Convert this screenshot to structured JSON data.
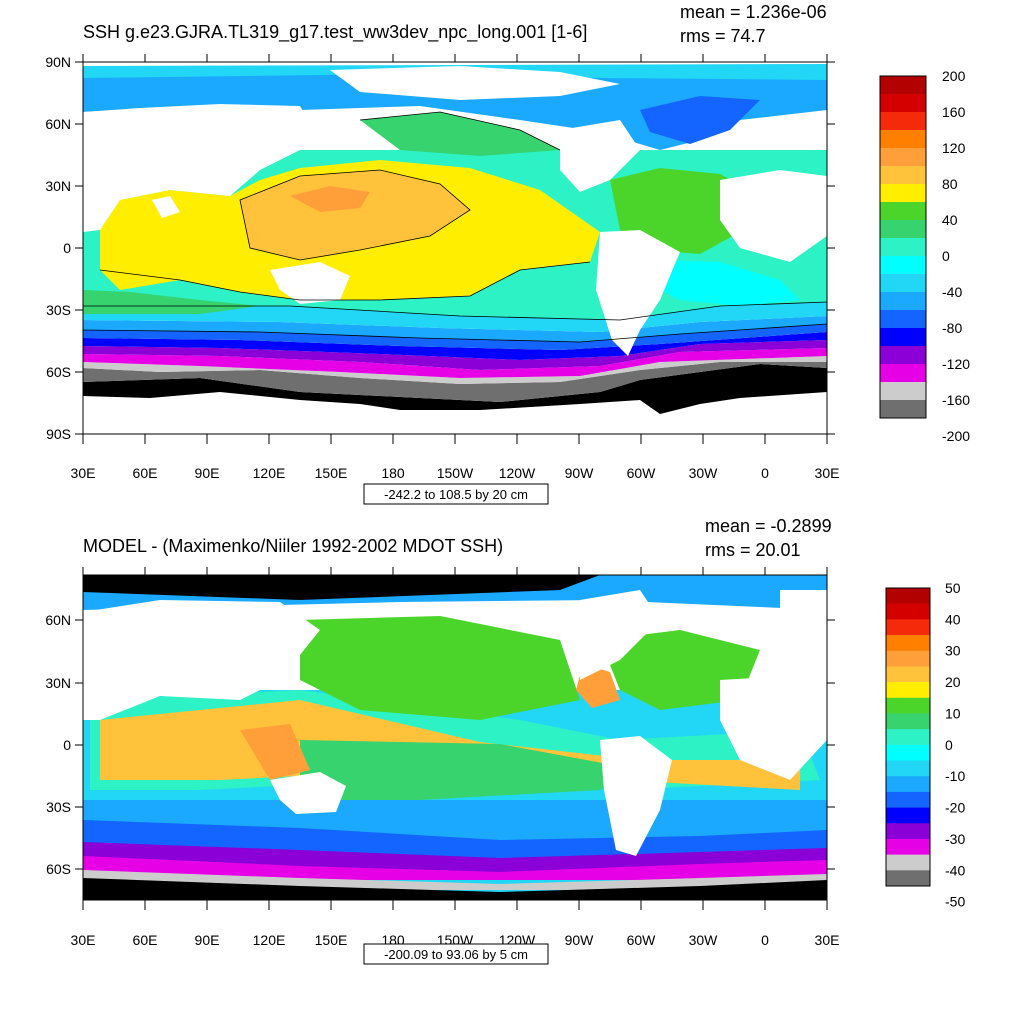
{
  "panels": [
    {
      "title": "SSH g.e23.GJRA.TL319_g17.test_ww3dev_npc_long.001 [1-6]",
      "stats": {
        "mean": "mean = 1.236e-06",
        "rms": "rms = 74.7"
      },
      "lat_ticks": [
        "90N",
        "60N",
        "30N",
        "0",
        "30S",
        "60S",
        "90S"
      ],
      "lon_ticks": [
        "30E",
        "60E",
        "90E",
        "120E",
        "150E",
        "180",
        "150W",
        "120W",
        "90W",
        "60W",
        "30W",
        "0",
        "30E"
      ],
      "range_label": "-242.2 to 108.5 by 20 cm",
      "colorbar": {
        "labels": [
          "200",
          "160",
          "120",
          "80",
          "40",
          "0",
          "-40",
          "-80",
          "-120",
          "-160",
          "-200"
        ],
        "colors": [
          "#b30000",
          "#d40000",
          "#f52a0a",
          "#ff7f00",
          "#ff9f3a",
          "#ffc23a",
          "#ffee00",
          "#4bd52a",
          "#36d36f",
          "#2cf2c6",
          "#00ffff",
          "#22d7f5",
          "#1aa9ff",
          "#1464ff",
          "#0000ff",
          "#8a00d6",
          "#e600e6",
          "#cccccc",
          "#6f6f6f"
        ]
      }
    },
    {
      "title": "MODEL - (Maximenko/Niiler 1992-2002 MDOT SSH)",
      "stats": {
        "mean": "mean = -0.2899",
        "rms": "rms = 20.01"
      },
      "lat_ticks": [
        "60N",
        "30N",
        "0",
        "30S",
        "60S"
      ],
      "lon_ticks": [
        "30E",
        "60E",
        "90E",
        "120E",
        "150E",
        "180",
        "150W",
        "120W",
        "90W",
        "60W",
        "30W",
        "0",
        "30E"
      ],
      "range_label": "-200.09 to 93.06 by 5 cm",
      "colorbar": {
        "labels": [
          "50",
          "40",
          "30",
          "20",
          "10",
          "0",
          "-10",
          "-20",
          "-30",
          "-40",
          "-50"
        ],
        "colors": [
          "#b30000",
          "#d40000",
          "#f52a0a",
          "#ff7f00",
          "#ff9f3a",
          "#ffc23a",
          "#ffee00",
          "#4bd52a",
          "#36d36f",
          "#2cf2c6",
          "#00ffff",
          "#22d7f5",
          "#1aa9ff",
          "#1464ff",
          "#0000ff",
          "#8a00d6",
          "#e600e6",
          "#cccccc",
          "#6f6f6f"
        ]
      }
    }
  ]
}
